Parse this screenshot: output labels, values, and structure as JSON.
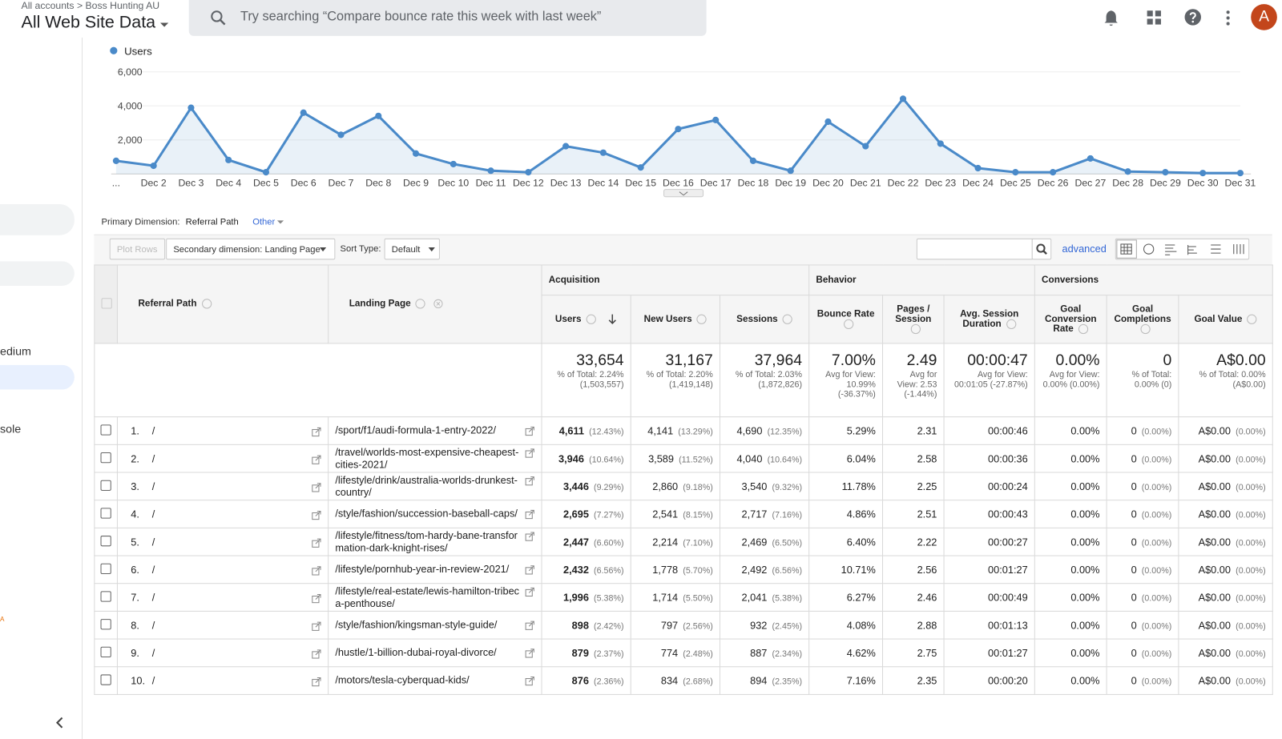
{
  "header": {
    "breadcrumb": [
      "All accounts",
      "Boss Hunting AU"
    ],
    "view": "All Web Site Data",
    "search_placeholder": "Try searching “Compare bounce rate this week with last week”",
    "avatar": "A"
  },
  "sidebar": {
    "items": [
      "edium",
      "sole",
      "A"
    ]
  },
  "chart_data": {
    "type": "line",
    "categories": [
      "...",
      "Dec 2",
      "Dec 3",
      "Dec 4",
      "Dec 5",
      "Dec 6",
      "Dec 7",
      "Dec 8",
      "Dec 9",
      "Dec 10",
      "Dec 11",
      "Dec 12",
      "Dec 13",
      "Dec 14",
      "Dec 15",
      "Dec 16",
      "Dec 17",
      "Dec 18",
      "Dec 19",
      "Dec 20",
      "Dec 21",
      "Dec 22",
      "Dec 23",
      "Dec 24",
      "Dec 25",
      "Dec 26",
      "Dec 27",
      "Dec 28",
      "Dec 29",
      "Dec 30",
      "Dec 31"
    ],
    "series": [
      {
        "name": "Users",
        "color": "#4a8ac9",
        "values": [
          770,
          480,
          3890,
          820,
          100,
          3600,
          2300,
          3410,
          1200,
          580,
          190,
          100,
          1630,
          1250,
          380,
          2640,
          3170,
          770,
          190,
          3070,
          1630,
          4420,
          1780,
          340,
          100,
          100,
          910,
          140,
          100,
          50,
          50
        ]
      }
    ],
    "ylim": [
      0,
      6000
    ],
    "yticks": [
      {
        "value": 2000,
        "label": "2,000"
      },
      {
        "value": 4000,
        "label": "4,000"
      },
      {
        "value": 6000,
        "label": "6,000"
      }
    ],
    "grid": true,
    "area": true
  },
  "toolbar": {
    "primary_dimension_label": "Primary Dimension:",
    "primary_dimension": "Referral Path",
    "other": "Other",
    "plot_rows": "Plot Rows",
    "secondary_dimension": "Secondary dimension: Landing Page",
    "sort_type_label": "Sort Type:",
    "sort_type": "Default",
    "advanced": "advanced"
  },
  "table": {
    "groups": [
      "Acquisition",
      "Behavior",
      "Conversions"
    ],
    "columns": [
      "Referral Path",
      "Landing Page",
      "Users",
      "New Users",
      "Sessions",
      "Bounce Rate",
      "Pages / Session",
      "Avg. Session Duration",
      "Goal Conversion Rate",
      "Goal Completions",
      "Goal Value"
    ],
    "totals": [
      [
        "33,654",
        "% of Total: 2.24% (1,503,557)"
      ],
      [
        "31,167",
        "% of Total: 2.20% (1,419,148)"
      ],
      [
        "37,964",
        "% of Total: 2.03% (1,872,826)"
      ],
      [
        "7.00%",
        "Avg for View: 10.99% (-36.37%)"
      ],
      [
        "2.49",
        "Avg for View: 2.53 (-1.44%)"
      ],
      [
        "00:00:47",
        "Avg for View: 00:01:05 (-27.87%)"
      ],
      [
        "0.00%",
        "Avg for View: 0.00% (0.00%)"
      ],
      [
        "0",
        "% of Total: 0.00% (0)"
      ],
      [
        "A$0.00",
        "% of Total: 0.00% (A$0.00)"
      ]
    ],
    "rows": [
      [
        "1.",
        "/",
        "/sport/f1/audi-formula-1-entry-2022/",
        "4,611",
        "(12.43%)",
        "4,141",
        "(13.29%)",
        "4,690",
        "(12.35%)",
        "5.29%",
        "2.31",
        "00:00:46",
        "0.00%",
        "0",
        "(0.00%)",
        "A$0.00",
        "(0.00%)"
      ],
      [
        "2.",
        "/",
        "/travel/worlds-most-expensive-cheapest-cities-2021/",
        "3,946",
        "(10.64%)",
        "3,589",
        "(11.52%)",
        "4,040",
        "(10.64%)",
        "6.04%",
        "2.58",
        "00:00:36",
        "0.00%",
        "0",
        "(0.00%)",
        "A$0.00",
        "(0.00%)"
      ],
      [
        "3.",
        "/",
        "/lifestyle/drink/australia-worlds-drunkest-country/",
        "3,446",
        "(9.29%)",
        "2,860",
        "(9.18%)",
        "3,540",
        "(9.32%)",
        "11.78%",
        "2.25",
        "00:00:24",
        "0.00%",
        "0",
        "(0.00%)",
        "A$0.00",
        "(0.00%)"
      ],
      [
        "4.",
        "/",
        "/style/fashion/succession-baseball-caps/",
        "2,695",
        "(7.27%)",
        "2,541",
        "(8.15%)",
        "2,717",
        "(7.16%)",
        "4.86%",
        "2.51",
        "00:00:43",
        "0.00%",
        "0",
        "(0.00%)",
        "A$0.00",
        "(0.00%)"
      ],
      [
        "5.",
        "/",
        "/lifestyle/fitness/tom-hardy-bane-transformation-dark-knight-rises/",
        "2,447",
        "(6.60%)",
        "2,214",
        "(7.10%)",
        "2,469",
        "(6.50%)",
        "6.40%",
        "2.22",
        "00:00:27",
        "0.00%",
        "0",
        "(0.00%)",
        "A$0.00",
        "(0.00%)"
      ],
      [
        "6.",
        "/",
        "/lifestyle/pornhub-year-in-review-2021/",
        "2,432",
        "(6.56%)",
        "1,778",
        "(5.70%)",
        "2,492",
        "(6.56%)",
        "10.71%",
        "2.56",
        "00:01:27",
        "0.00%",
        "0",
        "(0.00%)",
        "A$0.00",
        "(0.00%)"
      ],
      [
        "7.",
        "/",
        "/lifestyle/real-estate/lewis-hamilton-tribeca-penthouse/",
        "1,996",
        "(5.38%)",
        "1,714",
        "(5.50%)",
        "2,041",
        "(5.38%)",
        "6.27%",
        "2.46",
        "00:00:49",
        "0.00%",
        "0",
        "(0.00%)",
        "A$0.00",
        "(0.00%)"
      ],
      [
        "8.",
        "/",
        "/style/fashion/kingsman-style-guide/",
        "898",
        "(2.42%)",
        "797",
        "(2.56%)",
        "932",
        "(2.45%)",
        "4.08%",
        "2.88",
        "00:01:13",
        "0.00%",
        "0",
        "(0.00%)",
        "A$0.00",
        "(0.00%)"
      ],
      [
        "9.",
        "/",
        "/hustle/1-billion-dubai-royal-divorce/",
        "879",
        "(2.37%)",
        "774",
        "(2.48%)",
        "887",
        "(2.34%)",
        "4.62%",
        "2.75",
        "00:01:27",
        "0.00%",
        "0",
        "(0.00%)",
        "A$0.00",
        "(0.00%)"
      ],
      [
        "10.",
        "/",
        "/motors/tesla-cyberquad-kids/",
        "876",
        "(2.36%)",
        "834",
        "(2.68%)",
        "894",
        "(2.35%)",
        "7.16%",
        "2.35",
        "00:00:20",
        "0.00%",
        "0",
        "(0.00%)",
        "A$0.00",
        "(0.00%)"
      ]
    ]
  }
}
